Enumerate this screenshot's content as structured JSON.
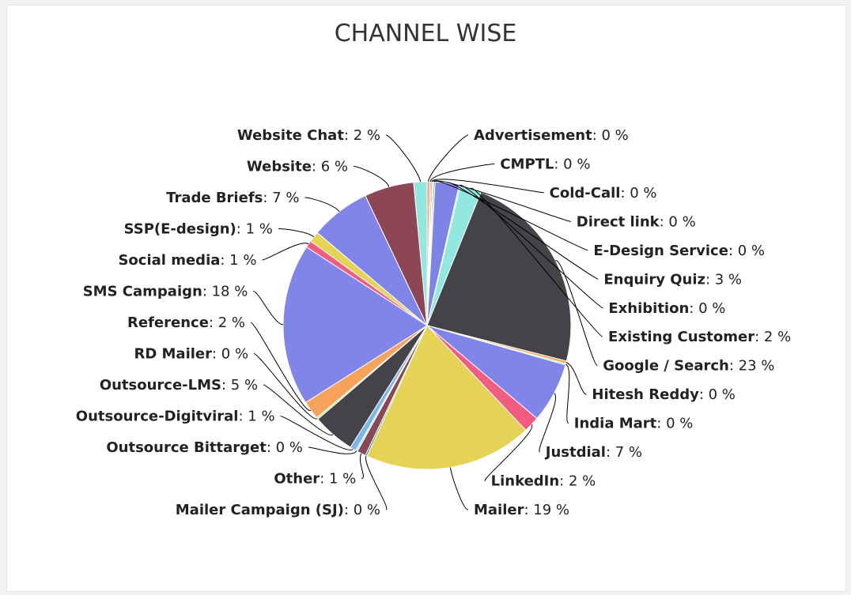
{
  "chart_data": {
    "type": "pie",
    "title": "CHANNEL WISE",
    "unit": "%",
    "slices": [
      {
        "name": "Advertisement",
        "value": 0.3,
        "label_value": "0",
        "color": "#f7a35c"
      },
      {
        "name": "CMPTL",
        "value": 0.15,
        "label_value": "0",
        "color": "#8085e9"
      },
      {
        "name": "Cold-Call",
        "value": 0.15,
        "label_value": "0",
        "color": "#f15c80"
      },
      {
        "name": "Direct link",
        "value": 0.15,
        "label_value": "0",
        "color": "#e4d354"
      },
      {
        "name": "E-Design Service",
        "value": 0.15,
        "label_value": "0",
        "color": "#2b908f"
      },
      {
        "name": "Enquiry Quiz",
        "value": 2.7,
        "label_value": "3",
        "color": "#7e84e6"
      },
      {
        "name": "Exhibition",
        "value": 0.15,
        "label_value": "0",
        "color": "#91e8e1"
      },
      {
        "name": "Existing Customer",
        "value": 2.4,
        "label_value": "2",
        "color": "#91e8e1"
      },
      {
        "name": "Google / Search",
        "value": 23.0,
        "label_value": "23",
        "color": "#434348"
      },
      {
        "name": "Hitesh Reddy",
        "value": 0.3,
        "label_value": "0",
        "color": "#f7a35c"
      },
      {
        "name": "India Mart",
        "value": 0.15,
        "label_value": "0",
        "color": "#90ed7d"
      },
      {
        "name": "Justdial",
        "value": 6.8,
        "label_value": "7",
        "color": "#8085e9"
      },
      {
        "name": "LinkedIn",
        "value": 1.8,
        "label_value": "2",
        "color": "#f15c80"
      },
      {
        "name": "Mailer",
        "value": 19.0,
        "label_value": "19",
        "color": "#e4d354"
      },
      {
        "name": "Mailer Campaign (SJ)",
        "value": 0.2,
        "label_value": "0",
        "color": "#2b908f"
      },
      {
        "name": "Other",
        "value": 1.0,
        "label_value": "1",
        "color": "#8d4653"
      },
      {
        "name": "Outsource Bittarget",
        "value": 0.2,
        "label_value": "0",
        "color": "#91e8e1"
      },
      {
        "name": "Outsource-Digitviral",
        "value": 0.7,
        "label_value": "1",
        "color": "#7cb5ec"
      },
      {
        "name": "Outsource-LMS",
        "value": 4.8,
        "label_value": "5",
        "color": "#434348"
      },
      {
        "name": "RD Mailer",
        "value": 0.2,
        "label_value": "0",
        "color": "#90ed7d"
      },
      {
        "name": "Reference",
        "value": 2.1,
        "label_value": "2",
        "color": "#f7a35c"
      },
      {
        "name": "SMS Campaign",
        "value": 18.3,
        "label_value": "18",
        "color": "#8085e9"
      },
      {
        "name": "Social media",
        "value": 0.8,
        "label_value": "1",
        "color": "#f15c80"
      },
      {
        "name": "SSP(E-design)",
        "value": 1.2,
        "label_value": "1",
        "color": "#e4d354"
      },
      {
        "name": "Trade Briefs",
        "value": 6.8,
        "label_value": "7",
        "color": "#8085e9"
      },
      {
        "name": "Website",
        "value": 5.6,
        "label_value": "6",
        "color": "#8d4653"
      },
      {
        "name": "Website Chat",
        "value": 1.5,
        "label_value": "2",
        "color": "#91e8e1"
      }
    ]
  }
}
